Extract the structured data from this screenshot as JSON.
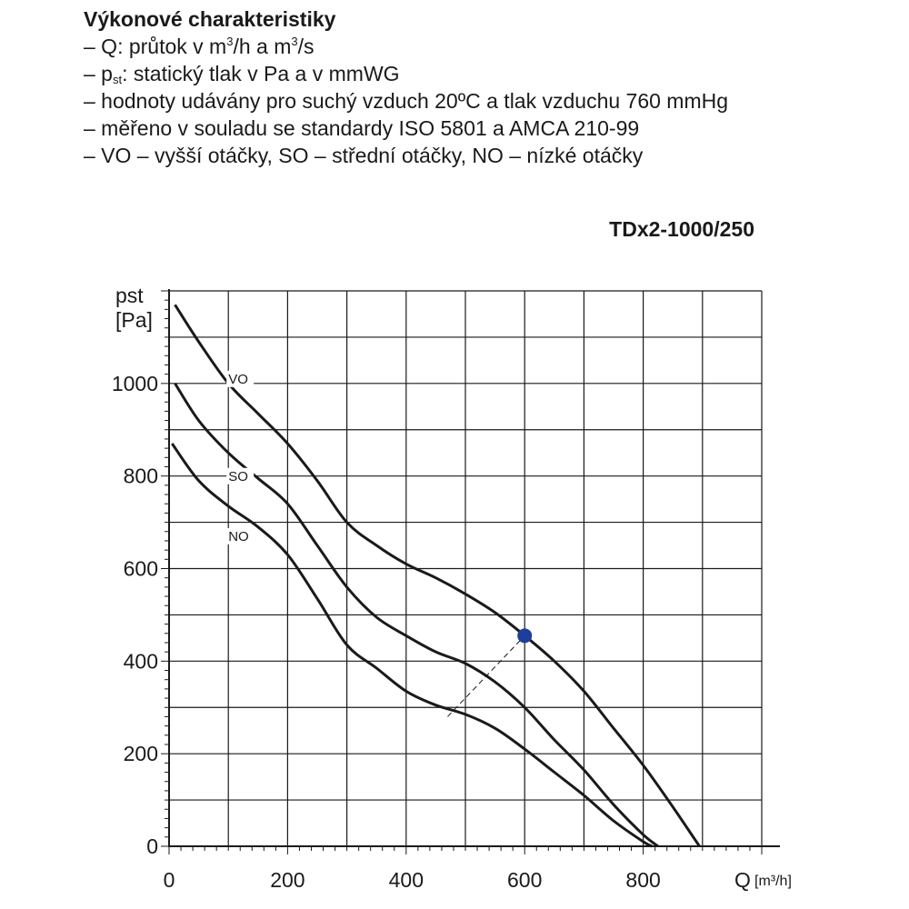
{
  "header": {
    "title": "Výkonové charakteristiky",
    "lines": [
      {
        "pre": "– Q: průtok v m",
        "s1": "3",
        "mid": "/h a m",
        "s2": "3",
        "post": "/s"
      },
      {
        "pre": "– p",
        "sub": "st",
        "post": ": statický tlak v Pa a v mmWG"
      },
      {
        "text": "– hodnoty udávány pro suchý vzduch 20ºC a tlak vzduchu 760 mmHg"
      },
      {
        "text": "– měřeno v souladu se standardy ISO 5801 a AMCA 210-99"
      },
      {
        "text": "– VO – vyšší otáčky, SO – střední otáčky, NO – nízké otáčky"
      }
    ]
  },
  "model": "TDx2-1000/250",
  "chart_data": {
    "type": "line",
    "title": "TDx2-1000/250",
    "xlabel": "Q",
    "xunit": "[m³/h]",
    "ylabel": "pst",
    "yunit": "[Pa]",
    "xlim": [
      0,
      1000
    ],
    "ylim": [
      0,
      1200
    ],
    "xticks": [
      0,
      200,
      400,
      600,
      800
    ],
    "yticks": [
      0,
      200,
      400,
      600,
      800,
      1000
    ],
    "grid": true,
    "series": [
      {
        "name": "VO",
        "points": [
          [
            10,
            1170
          ],
          [
            50,
            1090
          ],
          [
            100,
            1000
          ],
          [
            150,
            935
          ],
          [
            200,
            870
          ],
          [
            250,
            790
          ],
          [
            300,
            700
          ],
          [
            350,
            650
          ],
          [
            400,
            610
          ],
          [
            450,
            580
          ],
          [
            500,
            545
          ],
          [
            550,
            505
          ],
          [
            600,
            455
          ],
          [
            650,
            400
          ],
          [
            700,
            335
          ],
          [
            750,
            255
          ],
          [
            800,
            175
          ],
          [
            850,
            85
          ],
          [
            895,
            0
          ]
        ]
      },
      {
        "name": "SO",
        "points": [
          [
            10,
            1000
          ],
          [
            50,
            920
          ],
          [
            100,
            850
          ],
          [
            150,
            795
          ],
          [
            200,
            740
          ],
          [
            250,
            650
          ],
          [
            300,
            560
          ],
          [
            350,
            495
          ],
          [
            400,
            455
          ],
          [
            450,
            420
          ],
          [
            500,
            395
          ],
          [
            550,
            355
          ],
          [
            600,
            300
          ],
          [
            650,
            230
          ],
          [
            700,
            165
          ],
          [
            750,
            90
          ],
          [
            800,
            25
          ],
          [
            825,
            0
          ]
        ]
      },
      {
        "name": "NO",
        "points": [
          [
            5,
            870
          ],
          [
            50,
            790
          ],
          [
            100,
            735
          ],
          [
            150,
            690
          ],
          [
            200,
            630
          ],
          [
            250,
            535
          ],
          [
            300,
            435
          ],
          [
            350,
            385
          ],
          [
            400,
            335
          ],
          [
            450,
            305
          ],
          [
            500,
            285
          ],
          [
            550,
            255
          ],
          [
            600,
            210
          ],
          [
            650,
            160
          ],
          [
            700,
            110
          ],
          [
            750,
            55
          ],
          [
            800,
            10
          ],
          [
            815,
            0
          ]
        ]
      }
    ],
    "operating_point": {
      "x": 600,
      "y": 455,
      "color": "#1f3d9c"
    },
    "dashed_line": [
      [
        470,
        280
      ],
      [
        600,
        455
      ]
    ]
  }
}
